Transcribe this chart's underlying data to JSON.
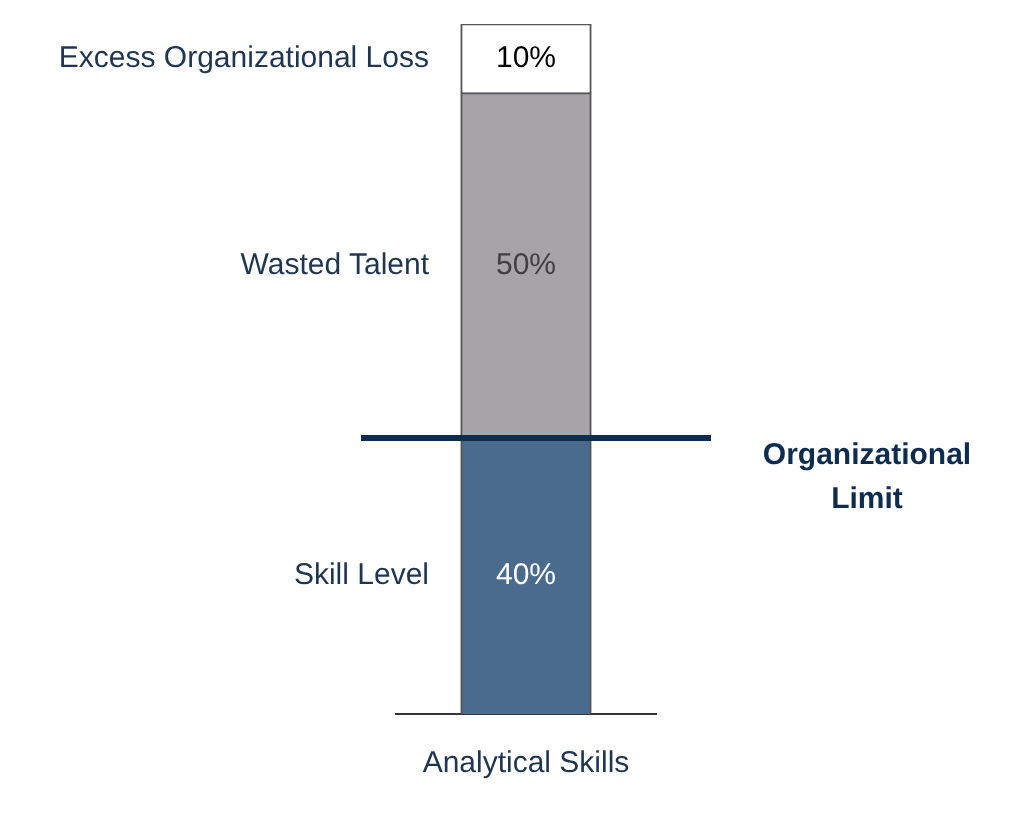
{
  "chart_data": {
    "type": "bar",
    "stacked": true,
    "relative": false,
    "categories": [
      "Analytical Skills"
    ],
    "series": [
      {
        "name": "Skill Level",
        "color": "#4a6b8b",
        "values": [
          40
        ],
        "value_labels": [
          "40%"
        ]
      },
      {
        "name": "Wasted Talent",
        "color": "#a6a4a9",
        "values": [
          50
        ],
        "value_labels": [
          "50%"
        ]
      },
      {
        "name": "Excess Organizational Loss",
        "color": "#ffffff",
        "values": [
          10
        ],
        "value_labels": [
          "10%"
        ]
      }
    ],
    "ylim": [
      0,
      100
    ],
    "tick_labels": "x",
    "grid": false,
    "legend": false,
    "ref_lines": [
      {
        "axis": "y",
        "value": 40,
        "label": "Organizational Limit",
        "color": "#0d2c4e"
      }
    ]
  }
}
